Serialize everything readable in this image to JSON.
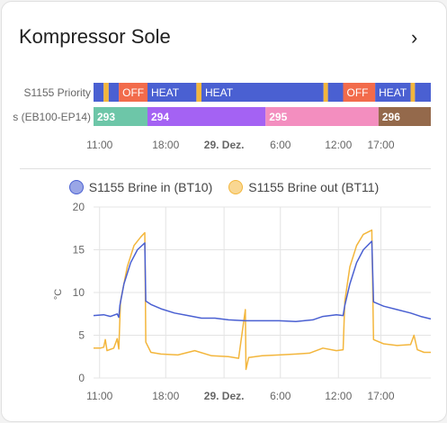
{
  "card": {
    "title": "Kompressor Sole",
    "chevron": "›"
  },
  "colors": {
    "heat": "#4a60d2",
    "off": "#f26b4b",
    "gap": "#f3b63c",
    "s293": "#6dc6a8",
    "s294": "#a462f3",
    "s295": "#f38ebf",
    "s296": "#94694b",
    "brine_in": "#4a60d2",
    "brine_out": "#f3b63c",
    "grid": "#e4e4e4"
  },
  "timeline": {
    "rows": [
      {
        "label": "S1155 Priority",
        "segments": [
          {
            "s": 0.0,
            "e": 0.03,
            "text": "",
            "c": "heat"
          },
          {
            "s": 0.03,
            "e": 0.045,
            "text": "",
            "c": "gap"
          },
          {
            "s": 0.045,
            "e": 0.075,
            "text": "",
            "c": "heat"
          },
          {
            "s": 0.075,
            "e": 0.16,
            "text": "OFF",
            "c": "off"
          },
          {
            "s": 0.16,
            "e": 0.305,
            "text": "HEAT",
            "c": "heat"
          },
          {
            "s": 0.305,
            "e": 0.32,
            "text": "",
            "c": "gap"
          },
          {
            "s": 0.32,
            "e": 0.682,
            "text": "HEAT",
            "c": "heat"
          },
          {
            "s": 0.682,
            "e": 0.695,
            "text": "",
            "c": "gap"
          },
          {
            "s": 0.695,
            "e": 0.74,
            "text": "",
            "c": "heat"
          },
          {
            "s": 0.74,
            "e": 0.835,
            "text": "OFF",
            "c": "off"
          },
          {
            "s": 0.835,
            "e": 0.94,
            "text": "HEAT",
            "c": "heat"
          },
          {
            "s": 0.94,
            "e": 0.953,
            "text": "",
            "c": "gap"
          },
          {
            "s": 0.953,
            "e": 1.0,
            "text": "",
            "c": "heat"
          }
        ]
      },
      {
        "label": "s (EB100-EP14)",
        "segments": [
          {
            "s": 0.0,
            "e": 0.16,
            "text": "293",
            "c": "s293"
          },
          {
            "s": 0.16,
            "e": 0.51,
            "text": "294",
            "c": "s294"
          },
          {
            "s": 0.51,
            "e": 0.845,
            "text": "295",
            "c": "s295"
          },
          {
            "s": 0.845,
            "e": 1.0,
            "text": "296",
            "c": "s296"
          }
        ]
      }
    ],
    "ticks": [
      {
        "t": 0.018,
        "label": "11:00",
        "bold": false
      },
      {
        "t": 0.214,
        "label": "18:00",
        "bold": false
      },
      {
        "t": 0.387,
        "label": "29. Dez.",
        "bold": true
      },
      {
        "t": 0.554,
        "label": "6:00",
        "bold": false
      },
      {
        "t": 0.726,
        "label": "12:00",
        "bold": false
      },
      {
        "t": 0.852,
        "label": "17:00",
        "bold": false
      }
    ]
  },
  "chart_data": {
    "type": "line",
    "ylabel": "°C",
    "ylim": [
      0,
      20
    ],
    "yticks": [
      0,
      5,
      10,
      15,
      20
    ],
    "legend": "top",
    "series": [
      {
        "name": "S1155 Brine in (BT10)",
        "color": "#4a60d2",
        "points": [
          [
            0.0,
            7.3
          ],
          [
            0.03,
            7.4
          ],
          [
            0.05,
            7.2
          ],
          [
            0.07,
            7.5
          ],
          [
            0.075,
            7.1
          ],
          [
            0.078,
            8.5
          ],
          [
            0.09,
            11.0
          ],
          [
            0.11,
            13.5
          ],
          [
            0.13,
            15.0
          ],
          [
            0.152,
            15.8
          ],
          [
            0.155,
            9.0
          ],
          [
            0.17,
            8.6
          ],
          [
            0.2,
            8.1
          ],
          [
            0.24,
            7.6
          ],
          [
            0.28,
            7.3
          ],
          [
            0.32,
            7.0
          ],
          [
            0.36,
            7.0
          ],
          [
            0.4,
            6.8
          ],
          [
            0.45,
            6.7
          ],
          [
            0.5,
            6.7
          ],
          [
            0.55,
            6.7
          ],
          [
            0.6,
            6.6
          ],
          [
            0.65,
            6.8
          ],
          [
            0.68,
            7.2
          ],
          [
            0.72,
            7.4
          ],
          [
            0.74,
            7.3
          ],
          [
            0.745,
            8.5
          ],
          [
            0.76,
            11.0
          ],
          [
            0.78,
            13.5
          ],
          [
            0.8,
            15.0
          ],
          [
            0.825,
            16.0
          ],
          [
            0.83,
            8.9
          ],
          [
            0.86,
            8.4
          ],
          [
            0.9,
            8.0
          ],
          [
            0.94,
            7.6
          ],
          [
            0.97,
            7.2
          ],
          [
            1.0,
            6.9
          ]
        ]
      },
      {
        "name": "S1155 Brine out (BT11)",
        "color": "#f3b63c",
        "points": [
          [
            0.0,
            3.5
          ],
          [
            0.02,
            3.5
          ],
          [
            0.03,
            3.6
          ],
          [
            0.035,
            4.5
          ],
          [
            0.04,
            3.2
          ],
          [
            0.06,
            3.5
          ],
          [
            0.07,
            4.6
          ],
          [
            0.075,
            3.4
          ],
          [
            0.08,
            9.0
          ],
          [
            0.1,
            13.0
          ],
          [
            0.12,
            15.5
          ],
          [
            0.14,
            16.5
          ],
          [
            0.152,
            17.0
          ],
          [
            0.155,
            4.2
          ],
          [
            0.17,
            3.0
          ],
          [
            0.2,
            2.8
          ],
          [
            0.25,
            2.7
          ],
          [
            0.3,
            3.2
          ],
          [
            0.35,
            2.6
          ],
          [
            0.4,
            2.5
          ],
          [
            0.43,
            2.3
          ],
          [
            0.45,
            8.0
          ],
          [
            0.452,
            1.0
          ],
          [
            0.46,
            2.4
          ],
          [
            0.5,
            2.6
          ],
          [
            0.55,
            2.7
          ],
          [
            0.6,
            2.8
          ],
          [
            0.64,
            2.9
          ],
          [
            0.68,
            3.5
          ],
          [
            0.72,
            3.2
          ],
          [
            0.74,
            3.3
          ],
          [
            0.745,
            9.0
          ],
          [
            0.76,
            13.0
          ],
          [
            0.78,
            15.5
          ],
          [
            0.8,
            16.8
          ],
          [
            0.825,
            17.3
          ],
          [
            0.83,
            4.5
          ],
          [
            0.86,
            4.0
          ],
          [
            0.9,
            3.8
          ],
          [
            0.94,
            3.9
          ],
          [
            0.95,
            5.0
          ],
          [
            0.96,
            3.3
          ],
          [
            0.98,
            3.0
          ],
          [
            1.0,
            3.0
          ]
        ]
      }
    ],
    "xticks": [
      {
        "x": 0.018,
        "label": "11:00",
        "bold": false
      },
      {
        "x": 0.214,
        "label": "18:00",
        "bold": false
      },
      {
        "x": 0.387,
        "label": "29. Dez.",
        "bold": true
      },
      {
        "x": 0.554,
        "label": "6:00",
        "bold": false
      },
      {
        "x": 0.726,
        "label": "12:00",
        "bold": false
      },
      {
        "x": 0.852,
        "label": "17:00",
        "bold": false
      }
    ]
  }
}
